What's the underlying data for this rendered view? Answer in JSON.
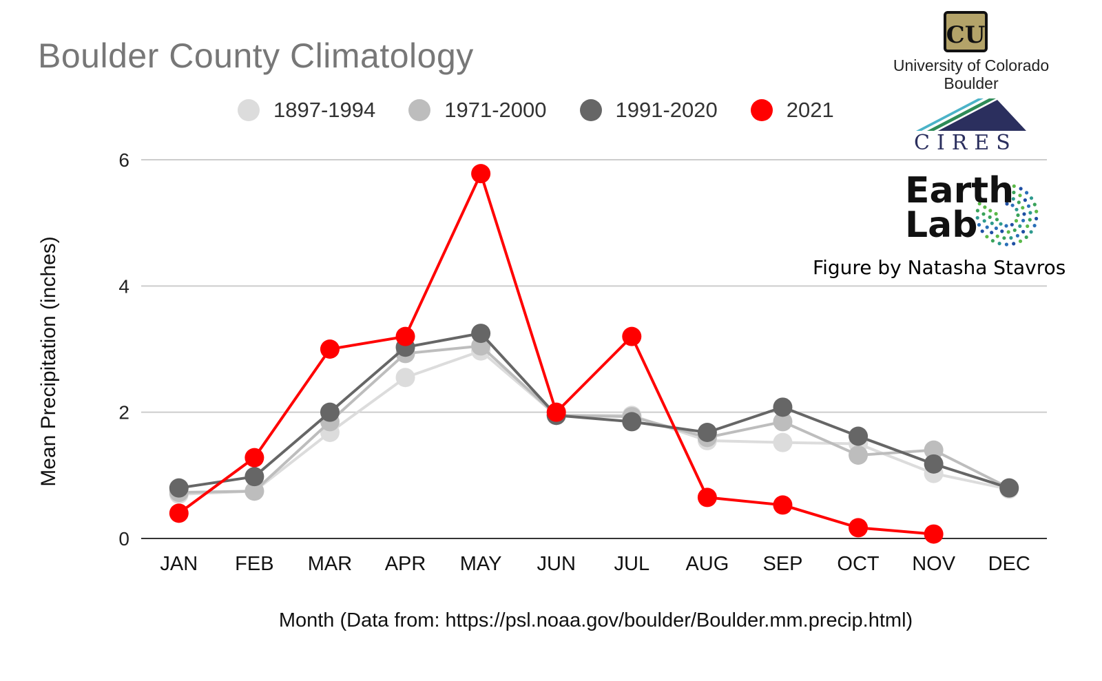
{
  "chart_data": {
    "type": "line",
    "title": "Boulder County Climatology",
    "xlabel": "Month (Data from: https://psl.noaa.gov/boulder/Boulder.mm.precip.html)",
    "ylabel": "Mean Precipitation (inches)",
    "ylim": [
      0,
      6
    ],
    "yticks": [
      "0",
      "2",
      "4",
      "6"
    ],
    "grid": true,
    "legend_position": "top",
    "categories": [
      "JAN",
      "FEB",
      "MAR",
      "APR",
      "MAY",
      "JUN",
      "JUL",
      "AUG",
      "SEP",
      "OCT",
      "NOV",
      "DEC"
    ],
    "series": [
      {
        "name": "1897-1994",
        "color": "#dcdcdc",
        "values": [
          0.7,
          0.75,
          1.68,
          2.55,
          2.97,
          1.95,
          1.95,
          1.55,
          1.52,
          1.5,
          1.03,
          0.78
        ]
      },
      {
        "name": "1971-2000",
        "color": "#bdbdbd",
        "values": [
          0.73,
          0.75,
          1.85,
          2.93,
          3.05,
          1.95,
          1.93,
          1.6,
          1.85,
          1.32,
          1.4,
          0.8
        ]
      },
      {
        "name": "1991-2020",
        "color": "#666666",
        "values": [
          0.8,
          0.98,
          2.0,
          3.03,
          3.25,
          1.95,
          1.85,
          1.68,
          2.08,
          1.62,
          1.18,
          0.8
        ]
      },
      {
        "name": "2021",
        "color": "#ff0000",
        "values": [
          0.4,
          1.28,
          3.0,
          3.2,
          5.78,
          2.0,
          3.2,
          0.65,
          0.53,
          0.17,
          0.07,
          null
        ]
      }
    ]
  },
  "logos": {
    "cu_name": "University of Colorado",
    "cu_sub": "Boulder",
    "cu_mark": "CU",
    "cires": "CIRES",
    "earth_line1": "Earth",
    "earth_line2": "Lab"
  },
  "credit": "Figure by Natasha Stavros"
}
